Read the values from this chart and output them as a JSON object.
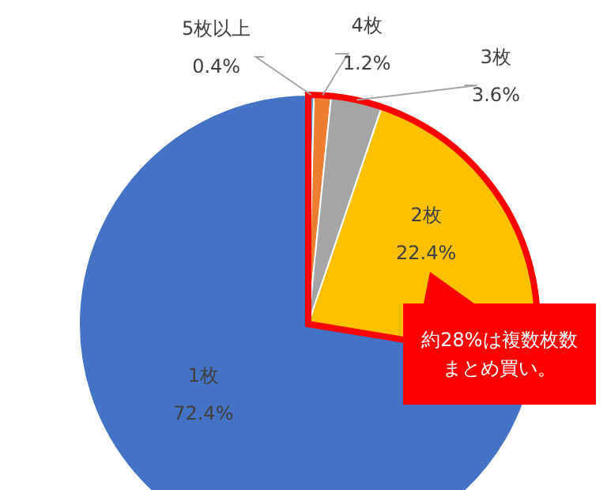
{
  "chart_data": {
    "type": "pie",
    "categories": [
      "5枚以上",
      "4枚",
      "3枚",
      "2枚",
      "1枚"
    ],
    "values": [
      0.4,
      1.2,
      3.6,
      22.4,
      72.4
    ],
    "value_labels": [
      "0.4%",
      "1.2%",
      "3.6%",
      "22.4%",
      "72.4%"
    ],
    "colors": [
      "#5b9bd5",
      "#ed7d31",
      "#a5a5a5",
      "#ffc000",
      "#4472c4"
    ],
    "annotations": [
      "約28%は複数枚数まとめ買い。"
    ]
  }
}
